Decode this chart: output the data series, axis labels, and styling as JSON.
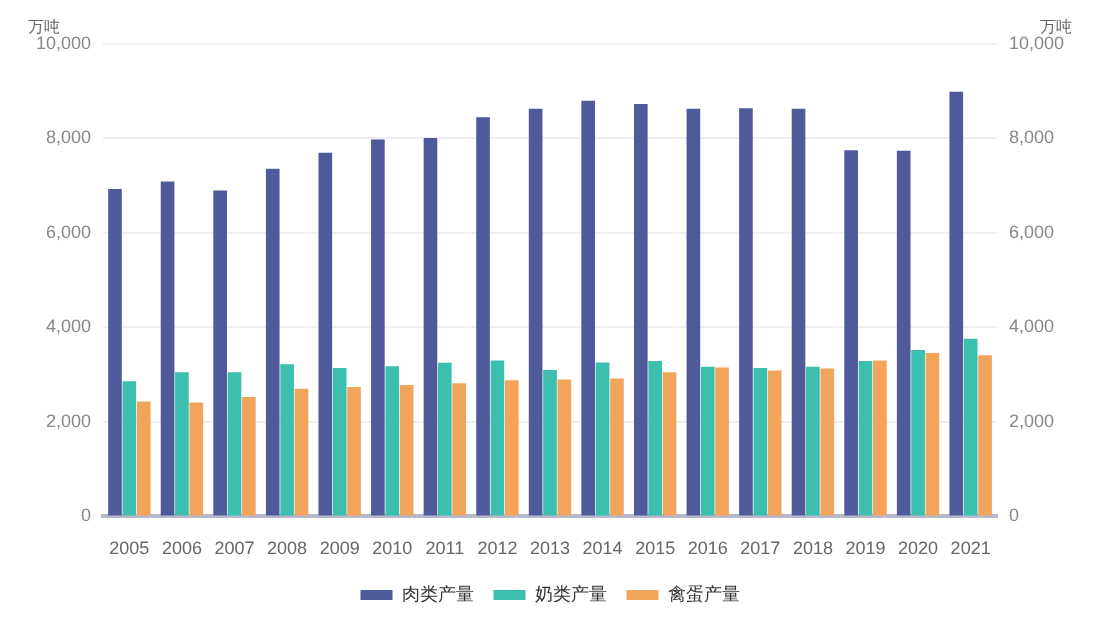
{
  "chart_data": {
    "type": "bar",
    "ylabel": "万吨",
    "y2label": "万吨",
    "categories": [
      "2005",
      "2006",
      "2007",
      "2008",
      "2009",
      "2010",
      "2011",
      "2012",
      "2013",
      "2014",
      "2015",
      "2016",
      "2017",
      "2018",
      "2019",
      "2020",
      "2021"
    ],
    "series": [
      {
        "name": "肉类产量",
        "color": "#4e5a9a",
        "values": [
          6930,
          7090,
          6900,
          7360,
          7700,
          7980,
          8010,
          8450,
          8630,
          8800,
          8730,
          8630,
          8640,
          8630,
          7750,
          7740,
          8990
        ]
      },
      {
        "name": "奶类产量",
        "color": "#3cbfae",
        "values": [
          2860,
          3050,
          3050,
          3220,
          3140,
          3180,
          3250,
          3300,
          3100,
          3260,
          3290,
          3170,
          3140,
          3170,
          3290,
          3520,
          3760
        ]
      },
      {
        "name": "禽蛋产量",
        "color": "#f2a45a",
        "values": [
          2430,
          2410,
          2530,
          2700,
          2740,
          2780,
          2820,
          2880,
          2900,
          2920,
          3050,
          3150,
          3090,
          3130,
          3300,
          3460,
          3410
        ]
      }
    ],
    "ylim": [
      0,
      10000
    ],
    "yticks": [
      0,
      {
        "value": 2000,
        "label": "2,000"
      },
      {
        "value": 4000,
        "label": "4,000"
      },
      {
        "value": 6000,
        "label": "6,000"
      },
      {
        "value": 8000,
        "label": "8,000"
      },
      {
        "value": 10000,
        "label": "10,000"
      }
    ],
    "y2lim": [
      0,
      10000
    ],
    "y2ticks": [
      0,
      {
        "value": 2000,
        "label": "2,000"
      },
      {
        "value": 4000,
        "label": "4,000"
      },
      {
        "value": 6000,
        "label": "6,000"
      },
      {
        "value": 8000,
        "label": "8,000"
      },
      {
        "value": 10000,
        "label": "10,000"
      }
    ],
    "grid": "y",
    "legend": "bottom"
  }
}
